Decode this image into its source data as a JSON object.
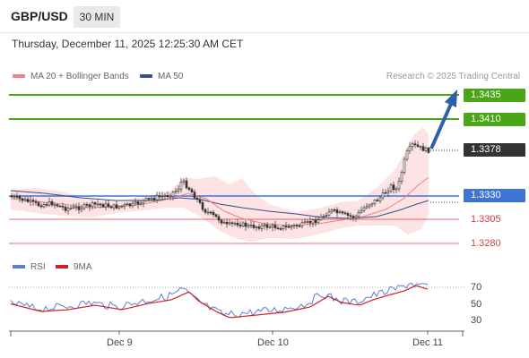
{
  "header": {
    "pair": "GBP/USD",
    "timeframe": "30 MIN",
    "datetime": "Thursday, December 11, 2025 12:25:30 AM CET"
  },
  "legend": {
    "ma20": "MA 20 + Bollinger Bands",
    "ma50": "MA 50",
    "credit": "Research © 2025 Trading Central"
  },
  "levels": {
    "r2": "1.3435",
    "r1": "1.3410",
    "last": "1.3378",
    "pivot": "1.3330",
    "s1": "1.3305",
    "s2": "1.3280"
  },
  "rsi": {
    "label": "RSI",
    "ma_label": "9MA",
    "ticks": [
      "70",
      "50",
      "30"
    ]
  },
  "xaxis": [
    "Dec 9",
    "Dec 10",
    "Dec 11"
  ],
  "colors": {
    "green": "#4aa617",
    "blue": "#3e74d6",
    "red": "#e03b3b",
    "ma20": "#f08080",
    "ma50": "#34508c",
    "band": "#fde3e3",
    "arrow": "#2f5fa8"
  }
}
